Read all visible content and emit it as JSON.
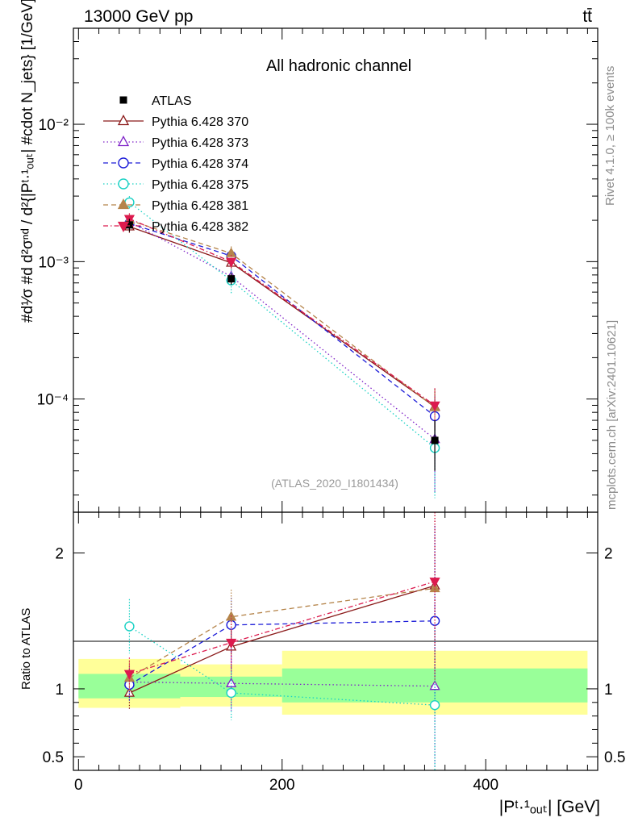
{
  "header": {
    "left": "13000 GeV pp",
    "right": "tt̄"
  },
  "side_labels": {
    "rivet": "Rivet 4.1.0, ≥ 100k events",
    "mcplots": "mcplots.cern.ch [arXiv:2401.10621]"
  },
  "chart_data": [
    {
      "type": "line",
      "panel": "main",
      "title": "All hadronic channel",
      "annotation": "(ATLAS_2020_I1801434)",
      "ylabel": "#d¹⁄σ #d d²σⁿᵈ / d²{|Pᵗ·¹ₒᵤₜ| #cdot N_jets} [1/GeV]",
      "yscale": "log",
      "xlim": [
        -5,
        510
      ],
      "ylim": [
        1.5e-05,
        0.05
      ],
      "yticks": [
        {
          "value": 0.01,
          "label": "10⁻²"
        },
        {
          "value": 0.001,
          "label": "10⁻³"
        },
        {
          "value": 0.0001,
          "label": "10⁻⁴"
        }
      ],
      "x": [
        50,
        150,
        350
      ],
      "series": [
        {
          "name": "ATLAS",
          "color": "#000000",
          "marker": "square-filled",
          "dash": "none",
          "values": [
            0.00185,
            0.00075,
            5e-05
          ],
          "err": [
            0.0002,
            7e-05,
            2e-05
          ]
        },
        {
          "name": "Pythia 6.428 370",
          "color": "#8b1a1a",
          "marker": "triangle-up-open",
          "dash": "solid",
          "values": [
            0.0018,
            0.00098,
            8.8e-05
          ],
          "err": [
            0.0002,
            0.00012,
            3e-05
          ]
        },
        {
          "name": "Pythia 6.428 373",
          "color": "#7f22c8",
          "marker": "triangle-up-open",
          "dash": "dot",
          "values": [
            0.00195,
            0.00078,
            5.1e-05
          ],
          "err": [
            0.0002,
            0.0001,
            3e-05
          ]
        },
        {
          "name": "Pythia 6.428 374",
          "color": "#1c1cd8",
          "marker": "circle-open",
          "dash": "dash",
          "values": [
            0.0019,
            0.0011,
            7.5e-05
          ],
          "err": [
            0.0002,
            0.00013,
            3e-05
          ]
        },
        {
          "name": "Pythia 6.428 375",
          "color": "#19d1c4",
          "marker": "circle-open",
          "dash": "dot",
          "values": [
            0.0027,
            0.00073,
            4.4e-05
          ],
          "err": [
            0.0003,
            0.00015,
            2.5e-05
          ]
        },
        {
          "name": "Pythia 6.428 381",
          "color": "#b5844a",
          "marker": "triangle-up-filled",
          "dash": "dash",
          "values": [
            0.002,
            0.00115,
            8.7e-05
          ],
          "err": [
            0.0002,
            0.00014,
            3e-05
          ]
        },
        {
          "name": "Pythia 6.428 382",
          "color": "#dc1a4e",
          "marker": "triangle-down-filled",
          "dash": "dashdot",
          "values": [
            0.00205,
            0.001,
            9e-05
          ],
          "err": [
            0.0002,
            0.00012,
            3e-05
          ]
        }
      ]
    },
    {
      "type": "line",
      "panel": "ratio",
      "ylabel": "Ratio to ATLAS",
      "xlabel": "|Pᵗ·¹ₒᵤₜ| [GeV]",
      "ylim": [
        0.4,
        2.3
      ],
      "xticks": [
        0,
        200,
        400
      ],
      "yticks": [
        0.5,
        1,
        2
      ],
      "bands": [
        {
          "x": [
            0,
            100
          ],
          "inner": [
            0.93,
            1.11
          ],
          "outer": [
            0.86,
            1.22
          ]
        },
        {
          "x": [
            100,
            200
          ],
          "inner": [
            0.94,
            1.09
          ],
          "outer": [
            0.87,
            1.18
          ]
        },
        {
          "x": [
            200,
            500
          ],
          "inner": [
            0.9,
            1.15
          ],
          "outer": [
            0.81,
            1.28
          ]
        }
      ],
      "band_colors": {
        "inner": "#99ff99",
        "outer": "#ffff99"
      },
      "x": [
        50,
        150,
        350
      ],
      "series": [
        {
          "name": "Pythia 6.428 370",
          "values": [
            0.97,
            1.31,
            1.76
          ],
          "err": [
            0.12,
            0.2,
            0.7
          ]
        },
        {
          "name": "Pythia 6.428 373",
          "values": [
            1.05,
            1.04,
            1.02
          ],
          "err": [
            0.12,
            0.2,
            0.6
          ]
        },
        {
          "name": "Pythia 6.428 374",
          "values": [
            1.03,
            1.47,
            1.5
          ],
          "err": [
            0.12,
            0.2,
            0.7
          ]
        },
        {
          "name": "Pythia 6.428 375",
          "values": [
            1.46,
            0.97,
            0.88
          ],
          "err": [
            0.2,
            0.2,
            0.55
          ]
        },
        {
          "name": "Pythia 6.428 381",
          "values": [
            1.08,
            1.53,
            1.74
          ],
          "err": [
            0.12,
            0.2,
            0.7
          ]
        },
        {
          "name": "Pythia 6.428 382",
          "values": [
            1.11,
            1.34,
            1.79
          ],
          "err": [
            0.12,
            0.2,
            0.7
          ]
        }
      ]
    }
  ]
}
